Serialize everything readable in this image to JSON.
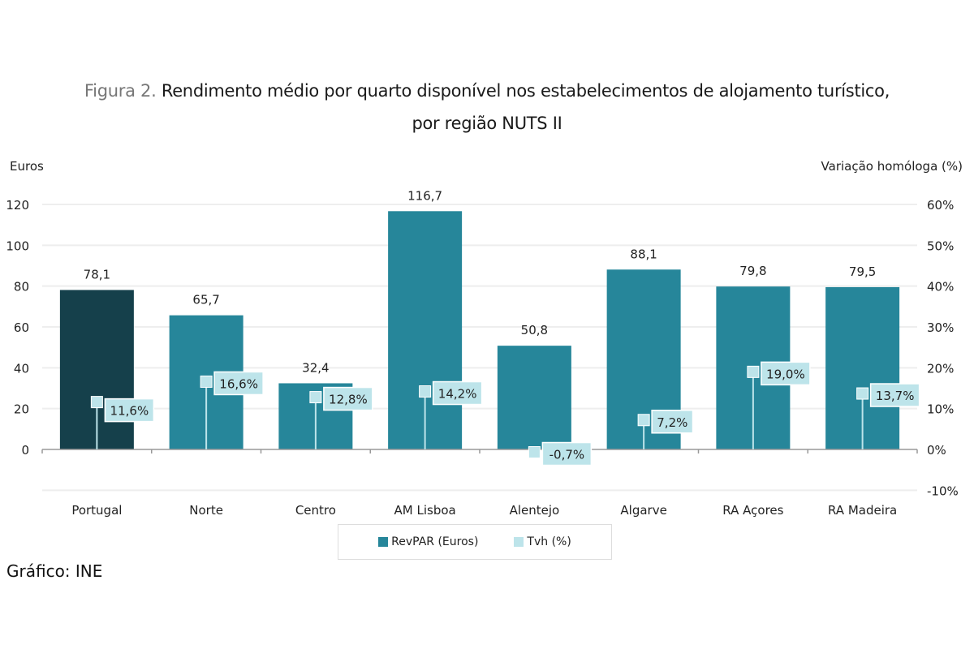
{
  "title": {
    "prefix": "Figura 2.",
    "line1": "Rendimento médio por quarto disponível nos estabelecimentos de alojamento turístico,",
    "line2": "por região NUTS II"
  },
  "source": "Gráfico: INE",
  "colors": {
    "portugal": "#15404b",
    "regions": "#26869a",
    "tvh": "#bde4ea",
    "grid": "#eeeeee",
    "axis": "#999999"
  },
  "chart_data": {
    "type": "bar+line",
    "categories": [
      "Portugal",
      "Norte",
      "Centro",
      "AM Lisboa",
      "Alentejo",
      "Algarve",
      "RA Açores",
      "RA Madeira"
    ],
    "series": [
      {
        "name": "RevPAR (Euros)",
        "axis": "left",
        "type": "bar",
        "values": [
          78.1,
          65.7,
          32.4,
          116.7,
          50.8,
          88.1,
          79.8,
          79.5
        ],
        "labels": [
          "78,1",
          "65,7",
          "32,4",
          "116,7",
          "50,8",
          "88,1",
          "79,8",
          "79,5"
        ]
      },
      {
        "name": "Tvh (%)",
        "axis": "right",
        "type": "marker",
        "values": [
          11.6,
          16.6,
          12.8,
          14.2,
          -0.7,
          7.2,
          19.0,
          13.7
        ],
        "labels": [
          "11,6%",
          "16,6%",
          "12,8%",
          "14,2%",
          "-0,7%",
          "7,2%",
          "19,0%",
          "13,7%"
        ]
      }
    ],
    "ylabel_left": "Euros",
    "ylabel_right": "Variação homóloga (%)",
    "ylim_left": [
      -20,
      120
    ],
    "ylim_right": [
      -10,
      60
    ],
    "yticks_left": [
      "0",
      "20",
      "40",
      "60",
      "80",
      "100",
      "120"
    ],
    "yticks_right": [
      "-10%",
      "0%",
      "10%",
      "20%",
      "30%",
      "40%",
      "50%",
      "60%"
    ],
    "grid": true,
    "legend_position": "bottom"
  }
}
